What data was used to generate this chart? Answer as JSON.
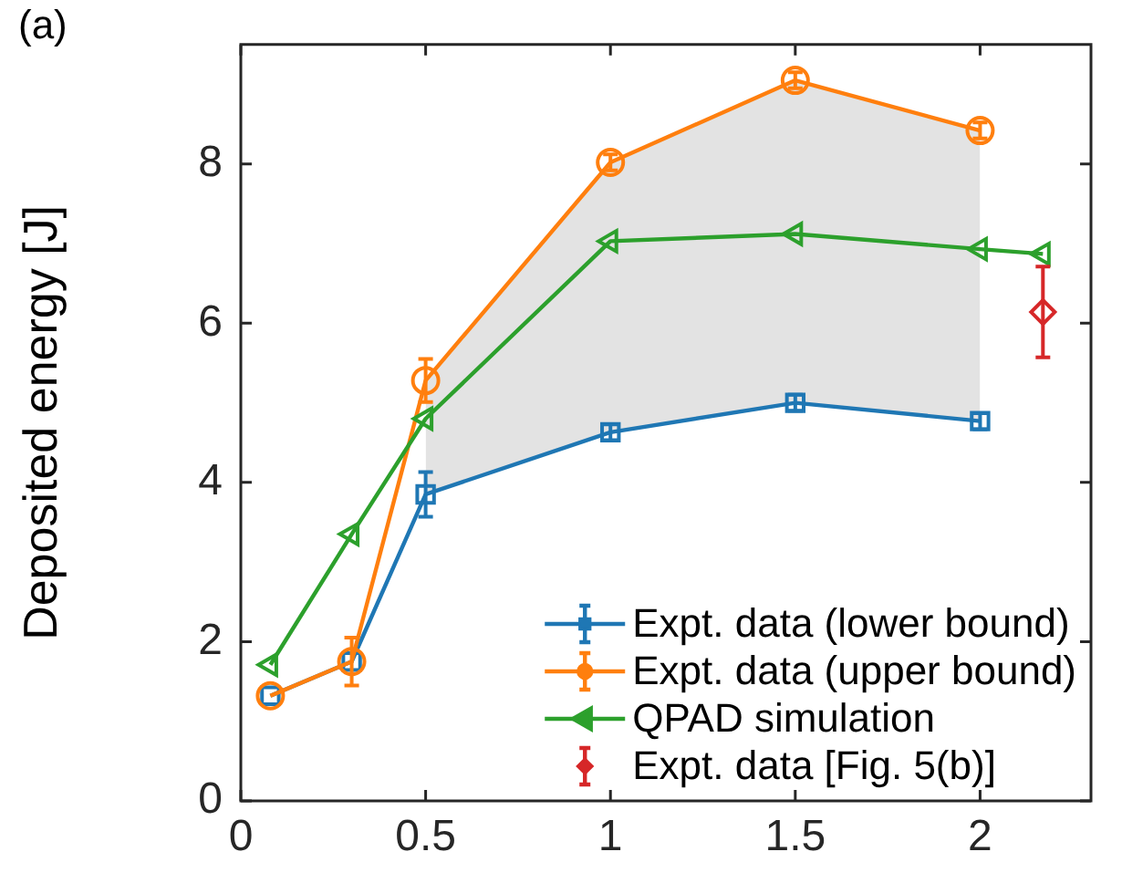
{
  "chart_data": {
    "type": "line",
    "title": "(a)",
    "ylabel": "Deposited energy [J]",
    "xlim": [
      0,
      2.3
    ],
    "xticks": [
      0,
      0.5,
      1,
      1.5,
      2
    ],
    "ylim": [
      0,
      9.5
    ],
    "yticks": [
      0,
      2,
      4,
      6,
      8
    ],
    "grid": false,
    "legend": "bottom right",
    "series": [
      {
        "name": "Expt. data (lower bound)",
        "color": "#1f77b4",
        "marker": "square",
        "x": [
          0.08,
          0.3,
          0.5,
          1,
          1.5,
          2
        ],
        "values": [
          1.32,
          1.75,
          3.85,
          4.63,
          5.0,
          4.77
        ],
        "errors": [
          null,
          null,
          0.28,
          0.1,
          0.1,
          0.1
        ]
      },
      {
        "name": "Expt. data (upper bound)",
        "color": "#ff7f0e",
        "marker": "circle",
        "x": [
          0.08,
          0.3,
          0.5,
          1,
          1.5,
          2
        ],
        "values": [
          1.32,
          1.75,
          5.28,
          8.02,
          9.05,
          8.42
        ],
        "errors": [
          null,
          0.3,
          0.27,
          0.1,
          0.1,
          0.1
        ],
        "lower": [
          null,
          null,
          3.85,
          4.63,
          5.0,
          4.77
        ],
        "upper": [
          null,
          null,
          5.28,
          8.02,
          9.05,
          8.42
        ]
      },
      {
        "name": "QPAD simulation",
        "color": "#2ca02c",
        "marker": "triangle",
        "x": [
          0.08,
          0.3,
          0.5,
          1,
          1.5,
          2,
          2.17
        ],
        "values": [
          1.71,
          3.35,
          4.8,
          7.03,
          7.12,
          6.93,
          6.87
        ]
      },
      {
        "name": "Expt. data [Fig. 5(b)]",
        "type": "scatter",
        "color": "#d62728",
        "marker": "diamond",
        "x": [
          2.17
        ],
        "values": [
          6.14
        ],
        "errors": [
          [
            5.57,
            6.71
          ]
        ]
      }
    ]
  }
}
